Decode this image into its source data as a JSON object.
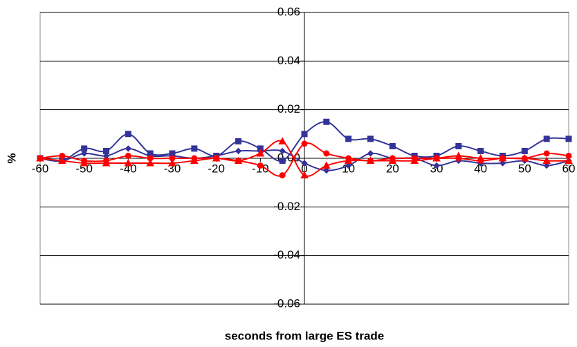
{
  "chart_data": {
    "type": "line",
    "x_label": "seconds from large ES trade",
    "y_label": "%",
    "x": [
      -60,
      -55,
      -50,
      -45,
      -40,
      -35,
      -30,
      -25,
      -20,
      -15,
      -10,
      -5,
      0,
      5,
      10,
      15,
      20,
      25,
      30,
      35,
      40,
      45,
      50,
      55,
      60
    ],
    "series": [
      {
        "color": "#333399",
        "marker": "square",
        "values": [
          0,
          -0.001,
          0.004,
          0.003,
          0.01,
          0.002,
          0.002,
          0.004,
          0.001,
          0.007,
          0.004,
          -0.001,
          0.01,
          0.015,
          0.008,
          0.008,
          0.005,
          0.001,
          0.001,
          0.005,
          0.003,
          0.001,
          0.003,
          0.008,
          0.008
        ]
      },
      {
        "color": "#333399",
        "marker": "diamond",
        "values": [
          0,
          -0.001,
          0.002,
          0.001,
          0.004,
          0.001,
          0.001,
          0,
          0.001,
          0.003,
          0.003,
          0.003,
          -0.002,
          -0.005,
          -0.003,
          0.002,
          0,
          0,
          -0.003,
          -0.001,
          -0.002,
          -0.002,
          -0.001,
          -0.003,
          -0.001
        ]
      },
      {
        "color": "#ff0000",
        "marker": "circle",
        "values": [
          0,
          0.001,
          -0.001,
          -0.001,
          0.001,
          0,
          0,
          0,
          0,
          -0.001,
          -0.003,
          -0.007,
          0.006,
          0.002,
          0,
          -0.001,
          0,
          0,
          0,
          0,
          -0.001,
          0,
          0,
          0.002,
          0.001
        ]
      },
      {
        "color": "#ff0000",
        "marker": "triangle",
        "values": [
          0,
          -0.001,
          -0.002,
          -0.002,
          -0.002,
          -0.002,
          -0.002,
          -0.001,
          0,
          -0.001,
          0.002,
          0.007,
          -0.007,
          -0.003,
          -0.001,
          -0.001,
          -0.001,
          -0.001,
          0,
          0.001,
          0,
          0,
          0,
          -0.001,
          -0.001
        ]
      }
    ],
    "xlim": [
      -60,
      60
    ],
    "xticks": [
      -60,
      -50,
      -40,
      -30,
      -20,
      -10,
      0,
      10,
      20,
      30,
      40,
      50,
      60
    ],
    "ylim": [
      -0.06,
      0.06
    ],
    "yticks": [
      0.06,
      0.04,
      0.02,
      {
        "value": 0,
        "label": "0.00"
      },
      -0.02,
      -0.04,
      -0.06
    ],
    "grid": true,
    "smooth": true
  }
}
